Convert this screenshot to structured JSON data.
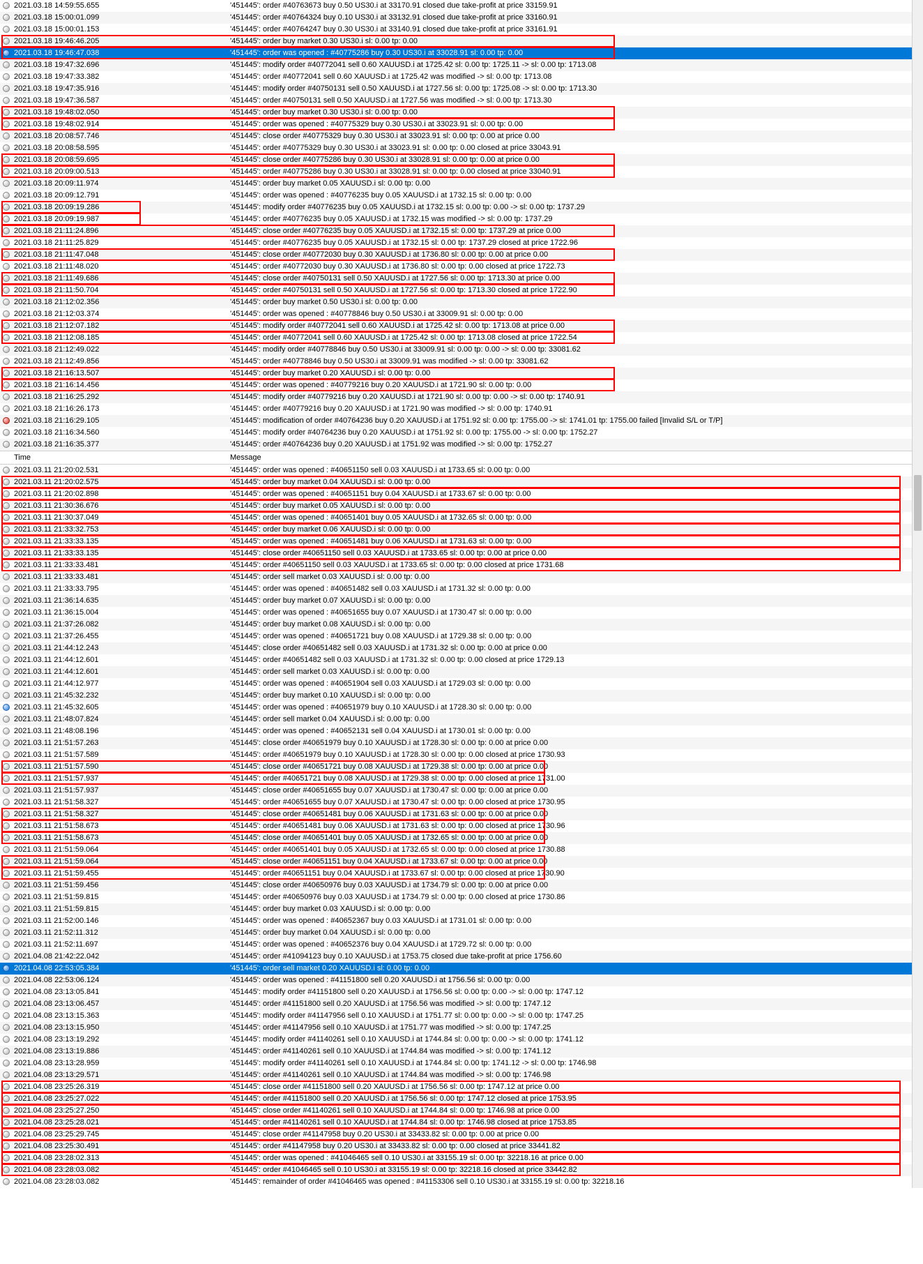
{
  "header": {
    "time": "Time",
    "message": "Message"
  },
  "rows": [
    {
      "i": "gray",
      "t": "2021.03.18 14:59:55.655",
      "m": "'451445': order #40763673 buy 0.50 US30.i at 33170.91 closed due take-profit at price 33159.91",
      "a": false
    },
    {
      "i": "gray",
      "t": "2021.03.18 15:00:01.099",
      "m": "'451445': order #40764324 buy 0.10 US30.i at 33132.91 closed due take-profit at price 33160.91",
      "a": true
    },
    {
      "i": "gray",
      "t": "2021.03.18 15:00:01.153",
      "m": "'451445': order #40764247 buy 0.30 US30.i at 33140.91 closed due take-profit at price 33161.91",
      "a": false
    },
    {
      "i": "gray",
      "t": "2021.03.18 19:46:46.205",
      "m": "'451445': order buy market 0.30 US30.i sl: 0.00 tp: 0.00",
      "a": true,
      "box": "time+half"
    },
    {
      "i": "blue",
      "t": "2021.03.18 19:46:47.038",
      "m": "'451445': order was opened : #40775286 buy 0.30 US30.i at 33028.91 sl: 0.00 tp: 0.00",
      "sel": true,
      "box": "time+half"
    },
    {
      "i": "gray",
      "t": "2021.03.18 19:47:32.696",
      "m": "'451445': modify order #40772041 sell 0.60 XAUUSD.i at 1725.42 sl: 0.00 tp: 1725.11 -> sl: 0.00 tp: 1713.08",
      "a": true
    },
    {
      "i": "gray",
      "t": "2021.03.18 19:47:33.382",
      "m": "'451445': order #40772041 sell 0.60 XAUUSD.i at 1725.42 was modified -> sl: 0.00 tp: 1713.08",
      "a": false
    },
    {
      "i": "gray",
      "t": "2021.03.18 19:47:35.916",
      "m": "'451445': modify order #40750131 sell 0.50 XAUUSD.i at 1727.56 sl: 0.00 tp: 1725.08 -> sl: 0.00 tp: 1713.30",
      "a": true
    },
    {
      "i": "gray",
      "t": "2021.03.18 19:47:36.587",
      "m": "'451445': order #40750131 sell 0.50 XAUUSD.i at 1727.56 was modified -> sl: 0.00 tp: 1713.30",
      "a": false
    },
    {
      "i": "gray",
      "t": "2021.03.18 19:48:02.050",
      "m": "'451445': order buy market 0.30 US30.i sl: 0.00 tp: 0.00",
      "a": true,
      "box": "time+half"
    },
    {
      "i": "gray",
      "t": "2021.03.18 19:48:02.914",
      "m": "'451445': order was opened : #40775329 buy 0.30 US30.i at 33023.91 sl: 0.00 tp: 0.00",
      "a": false,
      "box": "time+half"
    },
    {
      "i": "gray",
      "t": "2021.03.18 20:08:57.746",
      "m": "'451445': close order #40775329 buy 0.30 US30.i at 33023.91 sl: 0.00 tp: 0.00 at price 0.00",
      "a": true
    },
    {
      "i": "gray",
      "t": "2021.03.18 20:08:58.595",
      "m": "'451445': order #40775329 buy 0.30 US30.i at 33023.91 sl: 0.00 tp: 0.00 closed at price 33043.91",
      "a": false
    },
    {
      "i": "gray",
      "t": "2021.03.18 20:08:59.695",
      "m": "'451445': close order #40775286 buy 0.30 US30.i at 33028.91 sl: 0.00 tp: 0.00 at price 0.00",
      "a": true,
      "box": "time+half"
    },
    {
      "i": "gray",
      "t": "2021.03.18 20:09:00.513",
      "m": "'451445': order #40775286 buy 0.30 US30.i at 33028.91 sl: 0.00 tp: 0.00 closed at price 33040.91",
      "a": false,
      "box": "time+half"
    },
    {
      "i": "gray",
      "t": "2021.03.18 20:09:11.974",
      "m": "'451445': order buy market 0.05 XAUUSD.i sl: 0.00 tp: 0.00",
      "a": true
    },
    {
      "i": "gray",
      "t": "2021.03.18 20:09:12.791",
      "m": "'451445': order was opened : #40776235 buy 0.05 XAUUSD.i at 1732.15 sl: 0.00 tp: 0.00",
      "a": false
    },
    {
      "i": "gray",
      "t": "2021.03.18 20:09:19.286",
      "m": "'451445': modify order #40776235 buy 0.05 XAUUSD.i at 1732.15 sl: 0.00 tp: 0.00 -> sl: 0.00 tp: 1737.29",
      "a": true,
      "box": "time"
    },
    {
      "i": "gray",
      "t": "2021.03.18 20:09:19.987",
      "m": "'451445': order #40776235 buy 0.05 XAUUSD.i at 1732.15 was modified -> sl: 0.00 tp: 1737.29",
      "a": false,
      "box": "time"
    },
    {
      "i": "gray",
      "t": "2021.03.18 21:11:24.896",
      "m": "'451445': close order #40776235 buy 0.05 XAUUSD.i at 1732.15 sl: 0.00 tp: 1737.29 at price 0.00",
      "a": true,
      "box": "time+half"
    },
    {
      "i": "gray",
      "t": "2021.03.18 21:11:25.829",
      "m": "'451445': order #40776235 buy 0.05 XAUUSD.i at 1732.15 sl: 0.00 tp: 1737.29 closed at price 1722.96",
      "a": false
    },
    {
      "i": "gray",
      "t": "2021.03.18 21:11:47.048",
      "m": "'451445': close order #40772030 buy 0.30 XAUUSD.i at 1736.80 sl: 0.00 tp: 0.00 at price 0.00",
      "a": true,
      "box": "time+half"
    },
    {
      "i": "gray",
      "t": "2021.03.18 21:11:48.020",
      "m": "'451445': order #40772030 buy 0.30 XAUUSD.i at 1736.80 sl: 0.00 tp: 0.00 closed at price 1722.73",
      "a": false
    },
    {
      "i": "gray",
      "t": "2021.03.18 21:11:49.686",
      "m": "'451445': close order #40750131 sell 0.50 XAUUSD.i at 1727.56 sl: 0.00 tp: 1713.30 at price 0.00",
      "a": true,
      "box": "time+half"
    },
    {
      "i": "gray",
      "t": "2021.03.18 21:11:50.704",
      "m": "'451445': order #40750131 sell 0.50 XAUUSD.i at 1727.56 sl: 0.00 tp: 1713.30 closed at price 1722.90",
      "a": false,
      "box": "time+half"
    },
    {
      "i": "gray",
      "t": "2021.03.18 21:12:02.356",
      "m": "'451445': order buy market 0.50 US30.i sl: 0.00 tp: 0.00",
      "a": true
    },
    {
      "i": "gray",
      "t": "2021.03.18 21:12:03.374",
      "m": "'451445': order was opened : #40778846 buy 0.50 US30.i at 33009.91 sl: 0.00 tp: 0.00",
      "a": false
    },
    {
      "i": "gray",
      "t": "2021.03.18 21:12:07.182",
      "m": "'451445': modify order #40772041 sell 0.60 XAUUSD.i at 1725.42 sl: 0.00 tp: 1713.08 at price 0.00",
      "a": true,
      "box": "time+half"
    },
    {
      "i": "gray",
      "t": "2021.03.18 21:12:08.185",
      "m": "'451445': order #40772041 sell 0.60 XAUUSD.i at 1725.42 sl: 0.00 tp: 1713.08 closed at price 1722.54",
      "a": false,
      "box": "time+half"
    },
    {
      "i": "gray",
      "t": "2021.03.18 21:12:49.022",
      "m": "'451445': modify order #40778846 buy 0.50 US30.i at 33009.91 sl: 0.00 tp: 0.00 -> sl: 0.00 tp: 33081.62",
      "a": true
    },
    {
      "i": "gray",
      "t": "2021.03.18 21:12:49.856",
      "m": "'451445': order #40778846 buy 0.50 US30.i at 33009.91 was modified -> sl: 0.00 tp: 33081.62",
      "a": false
    },
    {
      "i": "gray",
      "t": "2021.03.18 21:16:13.507",
      "m": "'451445': order buy market 0.20 XAUUSD.i sl: 0.00 tp: 0.00",
      "a": true,
      "box": "time+half"
    },
    {
      "i": "gray",
      "t": "2021.03.18 21:16:14.456",
      "m": "'451445': order was opened : #40779216 buy 0.20 XAUUSD.i at 1721.90 sl: 0.00 tp: 0.00",
      "a": false,
      "box": "time+half"
    },
    {
      "i": "gray",
      "t": "2021.03.18 21:16:25.292",
      "m": "'451445': modify order #40779216 buy 0.20 XAUUSD.i at 1721.90 sl: 0.00 tp: 0.00 -> sl: 0.00 tp: 1740.91",
      "a": true
    },
    {
      "i": "gray",
      "t": "2021.03.18 21:16:26.173",
      "m": "'451445': order #40779216 buy 0.20 XAUUSD.i at 1721.90 was modified -> sl: 0.00 tp: 1740.91",
      "a": false
    },
    {
      "i": "red",
      "t": "2021.03.18 21:16:29.105",
      "m": "'451445': modification of order #40764236 buy 0.20 XAUUSD.i at 1751.92 sl: 0.00 tp: 1755.00 -> sl: 1741.01 tp: 1755.00 failed [Invalid S/L or T/P]",
      "a": true
    },
    {
      "i": "gray",
      "t": "2021.03.18 21:16:34.560",
      "m": "'451445': modify order #40764236 buy 0.20 XAUUSD.i at 1751.92 sl: 0.00 tp: 1755.00 -> sl: 0.00 tp: 1752.27",
      "a": false
    },
    {
      "i": "gray",
      "t": "2021.03.18 21:16:35.377",
      "m": "'451445': order #40764236 buy 0.20 XAUUSD.i at 1751.92 was modified -> sl: 0.00 tp: 1752.27",
      "a": true
    },
    {
      "header": true
    },
    {
      "i": "gray",
      "t": "2021.03.11 21:20:02.531",
      "m": "'451445': order was opened : #40651150 sell 0.03 XAUUSD.i at 1733.65 sl: 0.00 tp: 0.00",
      "a": false
    },
    {
      "i": "gray",
      "t": "2021.03.11 21:20:02.575",
      "m": "'451445': order buy market 0.04 XAUUSD.i sl: 0.00 tp: 0.00",
      "a": true,
      "box": "full"
    },
    {
      "i": "gray",
      "t": "2021.03.11 21:20:02.898",
      "m": "'451445': order was opened : #40651151 buy 0.04 XAUUSD.i at 1733.67 sl: 0.00 tp: 0.00",
      "a": false,
      "box": "full"
    },
    {
      "i": "gray",
      "t": "2021.03.11 21:30:36.676",
      "m": "'451445': order buy market 0.05 XAUUSD.i sl: 0.00 tp: 0.00",
      "a": true,
      "box": "full"
    },
    {
      "i": "gray",
      "t": "2021.03.11 21:30:37.049",
      "m": "'451445': order was opened : #40651401 buy 0.05 XAUUSD.i at 1732.65 sl: 0.00 tp: 0.00",
      "a": false,
      "box": "full"
    },
    {
      "i": "gray",
      "t": "2021.03.11 21:33:32.753",
      "m": "'451445': order buy market 0.06 XAUUSD.i sl: 0.00 tp: 0.00",
      "a": true,
      "box": "full"
    },
    {
      "i": "gray",
      "t": "2021.03.11 21:33:33.135",
      "m": "'451445': order was opened : #40651481 buy 0.06 XAUUSD.i at 1731.63 sl: 0.00 tp: 0.00",
      "a": false,
      "box": "full"
    },
    {
      "i": "gray",
      "t": "2021.03.11 21:33:33.135",
      "m": "'451445': close order #40651150 sell 0.03 XAUUSD.i at 1733.65 sl: 0.00 tp: 0.00 at price 0.00",
      "a": true,
      "box": "full"
    },
    {
      "i": "gray",
      "t": "2021.03.11 21:33:33.481",
      "m": "'451445': order #40651150 sell 0.03 XAUUSD.i at 1733.65 sl: 0.00 tp: 0.00 closed at price 1731.68",
      "a": false,
      "box": "full"
    },
    {
      "i": "gray",
      "t": "2021.03.11 21:33:33.481",
      "m": "'451445': order sell market 0.03 XAUUSD.i sl: 0.00 tp: 0.00",
      "a": true
    },
    {
      "i": "gray",
      "t": "2021.03.11 21:33:33.795",
      "m": "'451445': order was opened : #40651482 sell 0.03 XAUUSD.i at 1731.32 sl: 0.00 tp: 0.00",
      "a": false
    },
    {
      "i": "gray",
      "t": "2021.03.11 21:36:14.635",
      "m": "'451445': order buy market 0.07 XAUUSD.i sl: 0.00 tp: 0.00",
      "a": true
    },
    {
      "i": "gray",
      "t": "2021.03.11 21:36:15.004",
      "m": "'451445': order was opened : #40651655 buy 0.07 XAUUSD.i at 1730.47 sl: 0.00 tp: 0.00",
      "a": false
    },
    {
      "i": "gray",
      "t": "2021.03.11 21:37:26.082",
      "m": "'451445': order buy market 0.08 XAUUSD.i sl: 0.00 tp: 0.00",
      "a": true
    },
    {
      "i": "gray",
      "t": "2021.03.11 21:37:26.455",
      "m": "'451445': order was opened : #40651721 buy 0.08 XAUUSD.i at 1729.38 sl: 0.00 tp: 0.00",
      "a": false
    },
    {
      "i": "gray",
      "t": "2021.03.11 21:44:12.243",
      "m": "'451445': close order #40651482 sell 0.03 XAUUSD.i at 1731.32 sl: 0.00 tp: 0.00 at price 0.00",
      "a": true
    },
    {
      "i": "gray",
      "t": "2021.03.11 21:44:12.601",
      "m": "'451445': order #40651482 sell 0.03 XAUUSD.i at 1731.32 sl: 0.00 tp: 0.00 closed at price 1729.13",
      "a": false
    },
    {
      "i": "gray",
      "t": "2021.03.11 21:44:12.601",
      "m": "'451445': order sell market 0.03 XAUUSD.i sl: 0.00 tp: 0.00",
      "a": true
    },
    {
      "i": "gray",
      "t": "2021.03.11 21:44:12.977",
      "m": "'451445': order was opened : #40651904 sell 0.03 XAUUSD.i at 1729.03 sl: 0.00 tp: 0.00",
      "a": false
    },
    {
      "i": "gray",
      "t": "2021.03.11 21:45:32.232",
      "m": "'451445': order buy market 0.10 XAUUSD.i sl: 0.00 tp: 0.00",
      "a": true
    },
    {
      "i": "blue",
      "t": "2021.03.11 21:45:32.605",
      "m": "'451445': order was opened : #40651979 buy 0.10 XAUUSD.i at 1728.30 sl: 0.00 tp: 0.00",
      "a": false
    },
    {
      "i": "gray",
      "t": "2021.03.11 21:48:07.824",
      "m": "'451445': order sell market 0.04 XAUUSD.i sl: 0.00 tp: 0.00",
      "a": true
    },
    {
      "i": "gray",
      "t": "2021.03.11 21:48:08.196",
      "m": "'451445': order was opened : #40652131 sell 0.04 XAUUSD.i at 1730.01 sl: 0.00 tp: 0.00",
      "a": false
    },
    {
      "i": "gray",
      "t": "2021.03.11 21:51:57.263",
      "m": "'451445': close order #40651979 buy 0.10 XAUUSD.i at 1728.30 sl: 0.00 tp: 0.00 at price 0.00",
      "a": true
    },
    {
      "i": "gray",
      "t": "2021.03.11 21:51:57.589",
      "m": "'451445': order #40651979 buy 0.10 XAUUSD.i at 1728.30 sl: 0.00 tp: 0.00 closed at price 1730.93",
      "a": false
    },
    {
      "i": "gray",
      "t": "2021.03.11 21:51:57.590",
      "m": "'451445': close order #40651721 buy 0.08 XAUUSD.i at 1729.38 sl: 0.00 tp: 0.00 at price 0.00",
      "a": true,
      "box": "half"
    },
    {
      "i": "gray",
      "t": "2021.03.11 21:51:57.937",
      "m": "'451445': order #40651721 buy 0.08 XAUUSD.i at 1729.38 sl: 0.00 tp: 0.00 closed at price 1731.00",
      "a": false,
      "box": "half"
    },
    {
      "i": "gray",
      "t": "2021.03.11 21:51:57.937",
      "m": "'451445': close order #40651655 buy 0.07 XAUUSD.i at 1730.47 sl: 0.00 tp: 0.00 at price 0.00",
      "a": true
    },
    {
      "i": "gray",
      "t": "2021.03.11 21:51:58.327",
      "m": "'451445': order #40651655 buy 0.07 XAUUSD.i at 1730.47 sl: 0.00 tp: 0.00 closed at price 1730.95",
      "a": false
    },
    {
      "i": "gray",
      "t": "2021.03.11 21:51:58.327",
      "m": "'451445': close order #40651481 buy 0.06 XAUUSD.i at 1731.63 sl: 0.00 tp: 0.00 at price 0.00",
      "a": true,
      "box": "half"
    },
    {
      "i": "gray",
      "t": "2021.03.11 21:51:58.673",
      "m": "'451445': order #40651481 buy 0.06 XAUUSD.i at 1731.63 sl: 0.00 tp: 0.00 closed at price 1730.96",
      "a": false,
      "box": "half"
    },
    {
      "i": "gray",
      "t": "2021.03.11 21:51:58.673",
      "m": "'451445': close order #40651401 buy 0.05 XAUUSD.i at 1732.65 sl: 0.00 tp: 0.00 at price 0.00",
      "a": true,
      "box": "half"
    },
    {
      "i": "gray",
      "t": "2021.03.11 21:51:59.064",
      "m": "'451445': order #40651401 buy 0.05 XAUUSD.i at 1732.65 sl: 0.00 tp: 0.00 closed at price 1730.88",
      "a": false
    },
    {
      "i": "gray",
      "t": "2021.03.11 21:51:59.064",
      "m": "'451445': close order #40651151 buy 0.04 XAUUSD.i at 1733.67 sl: 0.00 tp: 0.00 at price 0.00",
      "a": true,
      "box": "half"
    },
    {
      "i": "gray",
      "t": "2021.03.11 21:51:59.455",
      "m": "'451445': order #40651151 buy 0.04 XAUUSD.i at 1733.67 sl: 0.00 tp: 0.00 closed at price 1730.90",
      "a": false,
      "box": "half"
    },
    {
      "i": "gray",
      "t": "2021.03.11 21:51:59.456",
      "m": "'451445': close order #40650976 buy 0.03 XAUUSD.i at 1734.79 sl: 0.00 tp: 0.00 at price 0.00",
      "a": true
    },
    {
      "i": "gray",
      "t": "2021.03.11 21:51:59.815",
      "m": "'451445': order #40650976 buy 0.03 XAUUSD.i at 1734.79 sl: 0.00 tp: 0.00 closed at price 1730.86",
      "a": false
    },
    {
      "i": "gray",
      "t": "2021.03.11 21:51:59.815",
      "m": "'451445': order buy market 0.03 XAUUSD.i sl: 0.00 tp: 0.00",
      "a": true
    },
    {
      "i": "gray",
      "t": "2021.03.11 21:52:00.146",
      "m": "'451445': order was opened : #40652367 buy 0.03 XAUUSD.i at 1731.01 sl: 0.00 tp: 0.00",
      "a": false
    },
    {
      "i": "gray",
      "t": "2021.03.11 21:52:11.312",
      "m": "'451445': order buy market 0.04 XAUUSD.i sl: 0.00 tp: 0.00",
      "a": true
    },
    {
      "i": "gray",
      "t": "2021.03.11 21:52:11.697",
      "m": "'451445': order was opened : #40652376 buy 0.04 XAUUSD.i at 1729.72 sl: 0.00 tp: 0.00",
      "a": false
    },
    {
      "i": "gray",
      "t": "2021.04.08 21:42:22.042",
      "m": "'451445': order #41094123 buy 0.10 XAUUSD.i at 1753.75 closed due take-profit at price 1756.60",
      "a": true
    },
    {
      "i": "blue",
      "t": "2021.04.08 22:53:05.384",
      "m": "'451445': order sell market 0.20 XAUUSD.i sl: 0.00 tp: 0.00",
      "sel": true
    },
    {
      "i": "gray",
      "t": "2021.04.08 22:53:06.124",
      "m": "'451445': order was opened : #41151800 sell 0.20 XAUUSD.i at 1756.56 sl: 0.00 tp: 0.00",
      "a": true
    },
    {
      "i": "gray",
      "t": "2021.04.08 23:13:05.841",
      "m": "'451445': modify order #41151800 sell 0.20 XAUUSD.i at 1756.56 sl: 0.00 tp: 0.00 -> sl: 0.00 tp: 1747.12",
      "a": false
    },
    {
      "i": "gray",
      "t": "2021.04.08 23:13:06.457",
      "m": "'451445': order #41151800 sell 0.20 XAUUSD.i at 1756.56 was modified -> sl: 0.00 tp: 1747.12",
      "a": true
    },
    {
      "i": "gray",
      "t": "2021.04.08 23:13:15.363",
      "m": "'451445': modify order #41147956 sell 0.10 XAUUSD.i at 1751.77 sl: 0.00 tp: 0.00 -> sl: 0.00 tp: 1747.25",
      "a": false
    },
    {
      "i": "gray",
      "t": "2021.04.08 23:13:15.950",
      "m": "'451445': order #41147956 sell 0.10 XAUUSD.i at 1751.77 was modified -> sl: 0.00 tp: 1747.25",
      "a": true
    },
    {
      "i": "gray",
      "t": "2021.04.08 23:13:19.292",
      "m": "'451445': modify order #41140261 sell 0.10 XAUUSD.i at 1744.84 sl: 0.00 tp: 0.00 -> sl: 0.00 tp: 1741.12",
      "a": false
    },
    {
      "i": "gray",
      "t": "2021.04.08 23:13:19.886",
      "m": "'451445': order #41140261 sell 0.10 XAUUSD.i at 1744.84 was modified -> sl: 0.00 tp: 1741.12",
      "a": true
    },
    {
      "i": "gray",
      "t": "2021.04.08 23:13:28.959",
      "m": "'451445': modify order #41140261 sell 0.10 XAUUSD.i at 1744.84 sl: 0.00 tp: 1741.12 -> sl: 0.00 tp: 1746.98",
      "a": false
    },
    {
      "i": "gray",
      "t": "2021.04.08 23:13:29.571",
      "m": "'451445': order #41140261 sell 0.10 XAUUSD.i at 1744.84 was modified -> sl: 0.00 tp: 1746.98",
      "a": true
    },
    {
      "i": "gray",
      "t": "2021.04.08 23:25:26.319",
      "m": "'451445': close order #41151800 sell 0.20 XAUUSD.i at 1756.56 sl: 0.00 tp: 1747.12 at price 0.00",
      "a": false,
      "box": "full"
    },
    {
      "i": "gray",
      "t": "2021.04.08 23:25:27.022",
      "m": "'451445': order #41151800 sell 0.20 XAUUSD.i at 1756.56 sl: 0.00 tp: 1747.12 closed at price 1753.95",
      "a": true,
      "box": "full"
    },
    {
      "i": "gray",
      "t": "2021.04.08 23:25:27.250",
      "m": "'451445': close order #41140261 sell 0.10 XAUUSD.i at 1744.84 sl: 0.00 tp: 1746.98 at price 0.00",
      "a": false,
      "box": "full"
    },
    {
      "i": "gray",
      "t": "2021.04.08 23:25:28.021",
      "m": "'451445': order #41140261 sell 0.10 XAUUSD.i at 1744.84 sl: 0.00 tp: 1746.98 closed at price 1753.85",
      "a": true,
      "box": "full"
    },
    {
      "i": "gray",
      "t": "2021.04.08 23:25:29.745",
      "m": "'451445': close order #41147958 buy 0.20 US30.i at 33433.82 sl: 0.00 tp: 0.00 at price 0.00",
      "a": false,
      "box": "full"
    },
    {
      "i": "gray",
      "t": "2021.04.08 23:25:30.491",
      "m": "'451445': order #41147958 buy 0.20 US30.i at 33433.82 sl: 0.00 tp: 0.00 closed at price 33441.82",
      "a": true,
      "box": "full"
    },
    {
      "i": "gray",
      "t": "2021.04.08 23:28:02.313",
      "m": "'451445': order was opened : #41046465 sell 0.10 US30.i at 33155.19 sl: 0.00 tp: 32218.16 at price 0.00",
      "a": false,
      "box": "full"
    },
    {
      "i": "gray",
      "t": "2021.04.08 23:28:03.082",
      "m": "'451445': order #41046465 sell 0.10 US30.i at 33155.19 sl: 0.00 tp: 32218.16 closed at price 33442.82",
      "a": true,
      "box": "full"
    },
    {
      "i": "gray",
      "t": "2021.04.08 23:28:03.082",
      "m": "'451445': remainder of order #41046465 was opened : #41153306 sell 0.10 US30.i at 33155.19 sl: 0.00 tp: 32218.16",
      "a": false
    }
  ],
  "colors": {
    "selected_bg": "#0078d7",
    "selected_fg": "#ffffff",
    "alt_bg": "#f5f5f5",
    "box_border": "#ff0000"
  }
}
